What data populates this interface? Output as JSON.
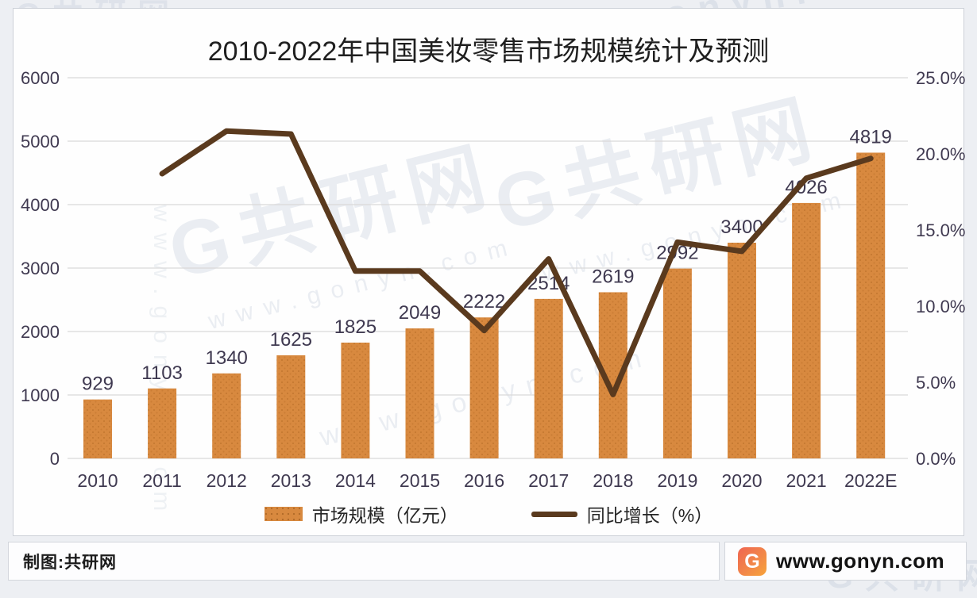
{
  "page": {
    "footer_left": "制图:共研网",
    "footer_right": "www.gonyn.com",
    "logo_letter": "G"
  },
  "watermark": {
    "brand": "G共研网",
    "url": "www.gonyn.com"
  },
  "chart_data": {
    "type": "bar+line combo",
    "title": "2010-2022年中国美妆零售市场规模统计及预测",
    "categories": [
      "2010",
      "2011",
      "2012",
      "2013",
      "2014",
      "2015",
      "2016",
      "2017",
      "2018",
      "2019",
      "2020",
      "2021",
      "2022E"
    ],
    "series": [
      {
        "name": "市场规模（亿元）",
        "type": "bar",
        "axis": "left",
        "color": "#d8893f",
        "values": [
          929,
          1103,
          1340,
          1625,
          1825,
          2049,
          2222,
          2514,
          2619,
          2992,
          3400,
          4026,
          4819
        ]
      },
      {
        "name": "同比增长（%）",
        "type": "line",
        "axis": "right",
        "color": "#5a3a1e",
        "values": [
          null,
          18.7,
          21.5,
          21.3,
          12.3,
          12.3,
          8.4,
          13.1,
          4.2,
          14.2,
          13.6,
          18.4,
          19.7
        ]
      }
    ],
    "left_axis": {
      "min": 0,
      "max": 6000,
      "step": 1000,
      "ticks": [
        "0",
        "1000",
        "2000",
        "3000",
        "4000",
        "5000",
        "6000"
      ]
    },
    "right_axis": {
      "min": 0,
      "max": 25,
      "step": 5,
      "ticks": [
        "0.0%",
        "5.0%",
        "10.0%",
        "15.0%",
        "20.0%",
        "25.0%"
      ]
    },
    "grid": true,
    "legend_position": "bottom",
    "colors": {
      "tick_label": "#3f3950",
      "value_label": "#3f3950",
      "gridline": "#d9d9d9",
      "bar_dot": "#c0752e"
    }
  }
}
